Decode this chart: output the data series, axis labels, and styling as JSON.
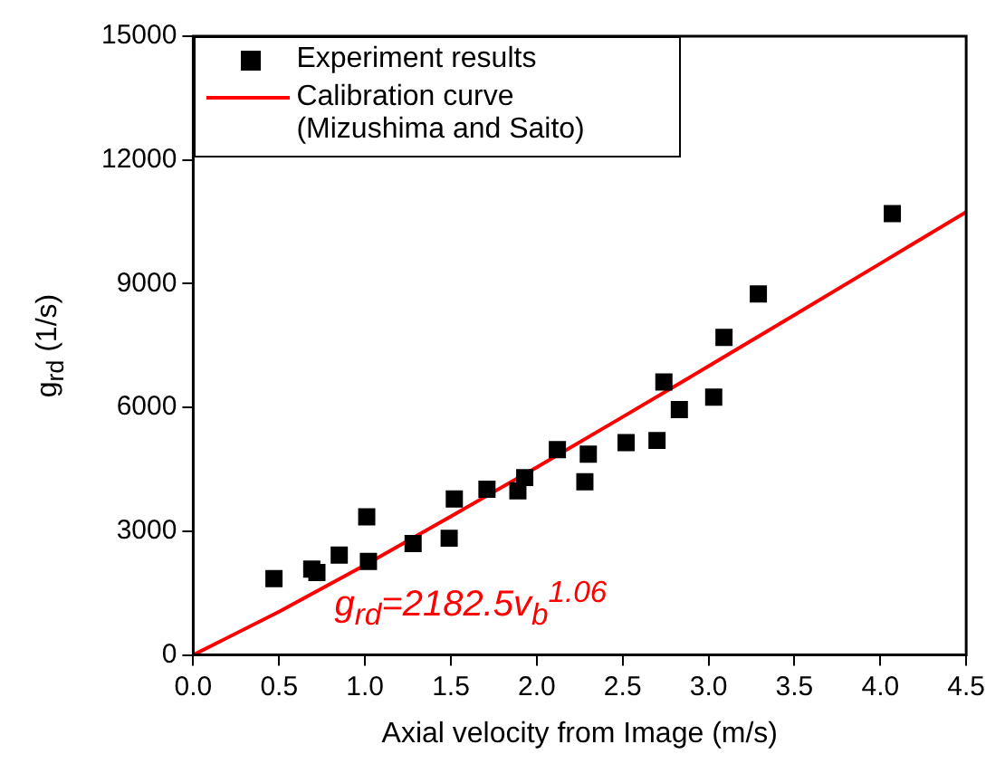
{
  "chart_data": {
    "type": "scatter",
    "xlabel": "Axial velocity from Image (m/s)",
    "ylabel": "g$_{rd}$ (1/s)",
    "xlim": [
      0,
      4.5
    ],
    "xticks": [
      {
        "value": 0,
        "label": "0.0"
      },
      {
        "value": 0.5,
        "label": "0.5"
      },
      {
        "value": 1,
        "label": "1.0"
      },
      {
        "value": 1.5,
        "label": "1.5"
      },
      {
        "value": 2,
        "label": "2.0"
      },
      {
        "value": 2.5,
        "label": "2.5"
      },
      {
        "value": 3,
        "label": "3.0"
      },
      {
        "value": 3.5,
        "label": "3.5"
      },
      {
        "value": 4,
        "label": "4.0"
      },
      {
        "value": 4.5,
        "label": "4.5"
      }
    ],
    "ylim": [
      0,
      15000
    ],
    "yticks": [
      0,
      3000,
      6000,
      9000,
      12000,
      15000
    ],
    "grid": false,
    "legend": "top left",
    "annotations": [
      "g$_{rd}$=2182.5v$_{b}$$^{1.06}$"
    ],
    "series": [
      {
        "name": "Experiment results",
        "marker": "square",
        "color": "#000000",
        "x": [
          0.47,
          0.69,
          0.72,
          0.85,
          1.01,
          1.02,
          1.28,
          1.49,
          1.52,
          1.71,
          1.89,
          1.93,
          2.12,
          2.28,
          2.3,
          2.52,
          2.7,
          2.74,
          2.83,
          3.03,
          3.09,
          3.29,
          4.07
        ],
        "values": [
          1850,
          2080,
          2000,
          2420,
          3350,
          2270,
          2700,
          2830,
          3780,
          4020,
          3980,
          4300,
          4980,
          4200,
          4870,
          5150,
          5200,
          6620,
          5950,
          6250,
          7700,
          8750,
          10700
        ]
      },
      {
        "name": "Calibration curve (Mizushima and Saito)",
        "type": "line",
        "marker": "none",
        "color": "#ff0000",
        "x": [
          0,
          0.5,
          1,
          1.5,
          2,
          2.5,
          3,
          3.5,
          4,
          4.5
        ],
        "values": [
          0,
          1050,
          2180,
          3360,
          4550,
          5770,
          7000,
          8240,
          9490,
          10740
        ]
      }
    ]
  }
}
